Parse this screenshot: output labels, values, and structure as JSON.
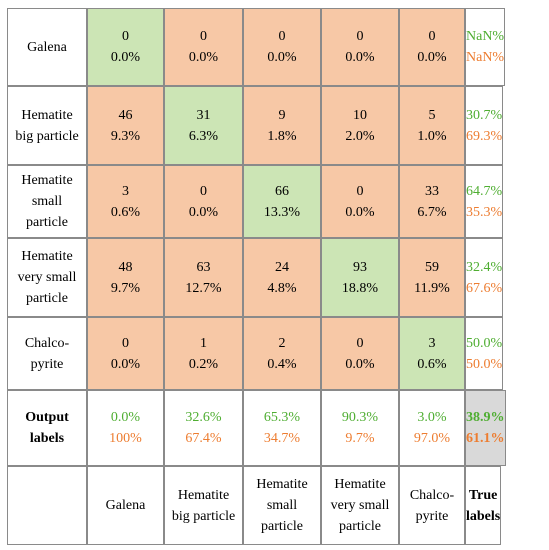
{
  "chart_data": {
    "type": "table",
    "title": "",
    "row_labels": [
      [
        "Galena"
      ],
      [
        "Hematite",
        "big particle"
      ],
      [
        "Hematite",
        "small",
        "particle"
      ],
      [
        "Hematite",
        "very small",
        "particle"
      ],
      [
        "Chalco-",
        "pyrite"
      ],
      [
        "Output",
        "labels"
      ]
    ],
    "col_labels": [
      [
        "Galena"
      ],
      [
        "Hematite",
        "big particle"
      ],
      [
        "Hematite",
        "small",
        "particle"
      ],
      [
        "Hematite",
        "very small",
        "particle"
      ],
      [
        "Chalco-",
        "pyrite"
      ],
      [
        "True",
        "labels"
      ]
    ],
    "counts": [
      [
        0,
        0,
        0,
        0,
        0
      ],
      [
        46,
        31,
        9,
        10,
        5
      ],
      [
        3,
        0,
        66,
        0,
        33
      ],
      [
        48,
        63,
        24,
        93,
        59
      ],
      [
        0,
        1,
        2,
        0,
        3
      ]
    ],
    "percents": [
      [
        "0.0%",
        "0.0%",
        "0.0%",
        "0.0%",
        "0.0%"
      ],
      [
        "9.3%",
        "6.3%",
        "1.8%",
        "2.0%",
        "1.0%"
      ],
      [
        "0.6%",
        "0.0%",
        "13.3%",
        "0.0%",
        "6.7%"
      ],
      [
        "9.7%",
        "12.7%",
        "4.8%",
        "18.8%",
        "11.9%"
      ],
      [
        "0.0%",
        "0.2%",
        "0.4%",
        "0.0%",
        "0.6%"
      ]
    ],
    "row_summary": [
      [
        "NaN%",
        "NaN%"
      ],
      [
        "30.7%",
        "69.3%"
      ],
      [
        "64.7%",
        "35.3%"
      ],
      [
        "32.4%",
        "67.6%"
      ],
      [
        "50.0%",
        "50.0%"
      ]
    ],
    "col_summary": [
      [
        "0.0%",
        "100%"
      ],
      [
        "32.6%",
        "67.4%"
      ],
      [
        "65.3%",
        "34.7%"
      ],
      [
        "90.3%",
        "9.7%"
      ],
      [
        "3.0%",
        "97.0%"
      ]
    ],
    "overall": [
      "38.9%",
      "61.1%"
    ]
  },
  "colors": {
    "correct_fill": "#cce5b5",
    "incorrect_fill": "#f7c8a6",
    "overall_fill": "#d9d9d9",
    "correct_text": "#4fae32",
    "incorrect_text": "#ed7d31",
    "border": "#8a8a8a"
  }
}
